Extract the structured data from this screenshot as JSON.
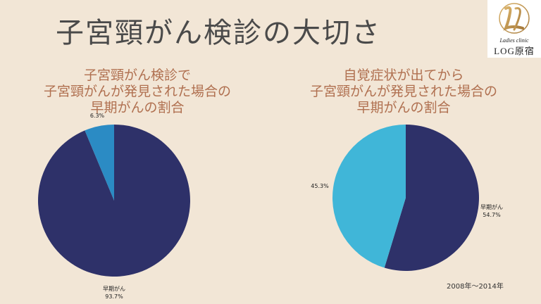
{
  "page_title": "子宮頸がん検診の大切さ",
  "logo": {
    "subtitle": "Ladies clinic",
    "name": "LOG原宿"
  },
  "colors": {
    "background": "#f2e6d6",
    "early_cancer": "#2e3169",
    "other_left": "#2b8bc4",
    "other_right": "#40b6d8",
    "title_text": "#b07050"
  },
  "chart_data": [
    {
      "type": "pie",
      "title": [
        "子宮頸がん検診で",
        "子宮頸がんが発見された場合の",
        "早期がんの割合"
      ],
      "slices": [
        {
          "label": "早期がん",
          "value": 93.7,
          "display": "93.7%",
          "color": "#2e3169"
        },
        {
          "label": "",
          "value": 6.3,
          "display": "6.3%",
          "color": "#2b8bc4"
        }
      ]
    },
    {
      "type": "pie",
      "title": [
        "自覚症状が出てから",
        "子宮頸がんが発見された場合の",
        "早期がんの割合"
      ],
      "slices": [
        {
          "label": "早期がん",
          "value": 54.7,
          "display": "54.7%",
          "color": "#2e3169"
        },
        {
          "label": "",
          "value": 45.3,
          "display": "45.3%",
          "color": "#40b6d8"
        }
      ]
    }
  ],
  "footnote": "2008年～2014年"
}
